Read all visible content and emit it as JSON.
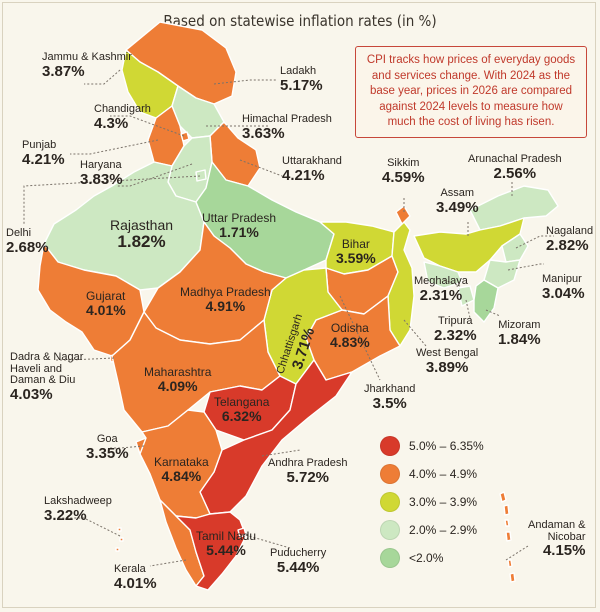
{
  "title": "Based on statewise inflation rates (in %)",
  "note": "CPI tracks how prices of everyday goods and services change. With 2024 as the base year, prices in 2026 are compared against 2024 levels to measure how much the cost of living has risen.",
  "colors": {
    "r": "#d83a2a",
    "o": "#ee7d36",
    "y": "#d0d834",
    "lg": "#cde8c2",
    "g": "#a7d79a",
    "border": "#ffffff",
    "sea": "#f9f6ec"
  },
  "legend": [
    {
      "label": "5.0% – 6.35%",
      "color": "#d83a2a"
    },
    {
      "label": "4.0% – 4.9%",
      "color": "#ee7d36"
    },
    {
      "label": "3.0% – 3.9%",
      "color": "#d0d834"
    },
    {
      "label": "2.0% – 2.9%",
      "color": "#cde8c2"
    },
    {
      "label": "<2.0%",
      "color": "#a7d79a"
    }
  ],
  "states": {
    "jk": {
      "name": "Jammu & Kashmir",
      "value": "3.87%"
    },
    "ladakh": {
      "name": "Ladakh",
      "value": "5.17%"
    },
    "chandigarh": {
      "name": "Chandigarh",
      "value": "4.3%"
    },
    "hp": {
      "name": "Himachal Pradesh",
      "value": "3.63%"
    },
    "punjab": {
      "name": "Punjab",
      "value": "4.21%"
    },
    "haryana": {
      "name": "Haryana",
      "value": "3.83%"
    },
    "uk": {
      "name": "Uttarakhand",
      "value": "4.21%"
    },
    "sikkim": {
      "name": "Sikkim",
      "value": "4.59%"
    },
    "arunachal": {
      "name": "Arunachal Pradesh",
      "value": "2.56%"
    },
    "assam": {
      "name": "Assam",
      "value": "3.49%"
    },
    "delhi": {
      "name": "Delhi",
      "value": "2.68%"
    },
    "rajasthan": {
      "name": "Rajasthan",
      "value": "1.82%"
    },
    "up": {
      "name": "Uttar Pradesh",
      "value": "1.71%"
    },
    "bihar": {
      "name": "Bihar",
      "value": "3.59%"
    },
    "nagaland": {
      "name": "Nagaland",
      "value": "2.82%"
    },
    "manipur": {
      "name": "Manipur",
      "value": "3.04%"
    },
    "meghalaya": {
      "name": "Meghalaya",
      "value": "2.31%"
    },
    "mizoram": {
      "name": "Mizoram",
      "value": "1.84%"
    },
    "tripura": {
      "name": "Tripura",
      "value": "2.32%"
    },
    "gujarat": {
      "name": "Gujarat",
      "value": "4.01%"
    },
    "mp": {
      "name": "Madhya Pradesh",
      "value": "4.91%"
    },
    "chhattisgarh": {
      "name": "Chhattisgarh",
      "value": "3.71%"
    },
    "odisha": {
      "name": "Odisha",
      "value": "4.83%"
    },
    "wb": {
      "name": "West Bengal",
      "value": "3.89%"
    },
    "dnhdd": {
      "name": "Dadra & Nagar Haveli and Daman & Diu",
      "name_lines": [
        "Dadra & Nagar",
        "Haveli and",
        "Daman & Diu"
      ],
      "value": "4.03%"
    },
    "maharashtra": {
      "name": "Maharashtra",
      "value": "4.09%"
    },
    "jharkhand": {
      "name": "Jharkhand",
      "value": "3.5%"
    },
    "telangana": {
      "name": "Telangana",
      "value": "6.32%"
    },
    "goa": {
      "name": "Goa",
      "value": "3.35%"
    },
    "karnataka": {
      "name": "Karnataka",
      "value": "4.84%"
    },
    "ap": {
      "name": "Andhra Pradesh",
      "value": "5.72%"
    },
    "lakshadweep": {
      "name": "Lakshadweep",
      "value": "3.22%"
    },
    "tn": {
      "name": "Tamil Nadu",
      "value": "5.44%"
    },
    "puducherry": {
      "name": "Puducherry",
      "value": "5.44%"
    },
    "kerala": {
      "name": "Kerala",
      "value": "4.01%"
    },
    "andaman": {
      "name": "Andaman & Nicobar",
      "name_lines": [
        "Andaman &",
        "Nicobar"
      ],
      "value": "4.15%"
    }
  }
}
